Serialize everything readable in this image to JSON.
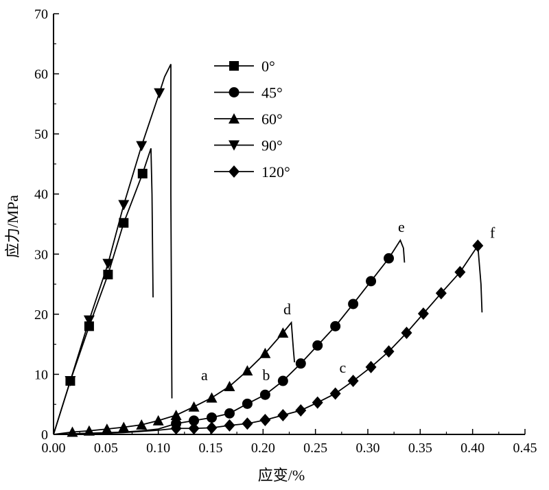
{
  "chart_data": {
    "type": "line",
    "xlabel": "应变/%",
    "ylabel": "应力/MPa",
    "xlim": [
      0,
      0.45
    ],
    "ylim": [
      0,
      70
    ],
    "xticks": [
      "0.00",
      "0.05",
      "0.10",
      "0.15",
      "0.20",
      "0.25",
      "0.30",
      "0.35",
      "0.40",
      "0.45"
    ],
    "yticks": [
      "0",
      "10",
      "20",
      "30",
      "40",
      "50",
      "60",
      "70"
    ],
    "grid": false,
    "legend_position": "top-center",
    "series": [
      {
        "name": "0°",
        "marker": "square",
        "line": [
          [
            0,
            0
          ],
          [
            0.016,
            8.9
          ],
          [
            0.034,
            18
          ],
          [
            0.052,
            26.6
          ],
          [
            0.067,
            35.2
          ],
          [
            0.085,
            43.4
          ],
          [
            0.093,
            47.6
          ],
          [
            0.094,
            40
          ],
          [
            0.095,
            22.8
          ]
        ],
        "markers": [
          [
            0.016,
            8.9
          ],
          [
            0.034,
            18
          ],
          [
            0.052,
            26.6
          ],
          [
            0.067,
            35.2
          ],
          [
            0.085,
            43.4
          ]
        ]
      },
      {
        "name": "45°",
        "marker": "circle",
        "line": [
          [
            0,
            0
          ],
          [
            0.018,
            0.1
          ],
          [
            0.034,
            0.2
          ],
          [
            0.051,
            0.3
          ],
          [
            0.067,
            0.4
          ],
          [
            0.084,
            0.6
          ],
          [
            0.1,
            0.9
          ],
          [
            0.117,
            1.8
          ],
          [
            0.134,
            2.3
          ],
          [
            0.151,
            2.8
          ],
          [
            0.168,
            3.5
          ],
          [
            0.185,
            5.1
          ],
          [
            0.202,
            6.6
          ],
          [
            0.219,
            8.9
          ],
          [
            0.236,
            11.8
          ],
          [
            0.252,
            14.8
          ],
          [
            0.269,
            18.0
          ],
          [
            0.286,
            21.7
          ],
          [
            0.303,
            25.5
          ],
          [
            0.32,
            29.3
          ],
          [
            0.331,
            32.3
          ],
          [
            0.334,
            31
          ],
          [
            0.335,
            28.6
          ]
        ],
        "markers": [
          [
            0.117,
            1.8
          ],
          [
            0.134,
            2.3
          ],
          [
            0.151,
            2.8
          ],
          [
            0.168,
            3.5
          ],
          [
            0.185,
            5.1
          ],
          [
            0.202,
            6.6
          ],
          [
            0.219,
            8.9
          ],
          [
            0.236,
            11.8
          ],
          [
            0.252,
            14.8
          ],
          [
            0.269,
            18.0
          ],
          [
            0.286,
            21.7
          ],
          [
            0.303,
            25.5
          ],
          [
            0.32,
            29.3
          ]
        ]
      },
      {
        "name": "60°",
        "marker": "triangle-up",
        "line": [
          [
            0,
            0
          ],
          [
            0.018,
            0.4
          ],
          [
            0.034,
            0.6
          ],
          [
            0.051,
            0.9
          ],
          [
            0.067,
            1.2
          ],
          [
            0.084,
            1.6
          ],
          [
            0.1,
            2.3
          ],
          [
            0.117,
            3.2
          ],
          [
            0.134,
            4.6
          ],
          [
            0.151,
            6.1
          ],
          [
            0.168,
            8.0
          ],
          [
            0.185,
            10.6
          ],
          [
            0.202,
            13.5
          ],
          [
            0.219,
            16.9
          ],
          [
            0.227,
            18.6
          ],
          [
            0.229,
            14
          ],
          [
            0.23,
            12
          ]
        ],
        "markers": [
          [
            0.018,
            0.4
          ],
          [
            0.034,
            0.6
          ],
          [
            0.051,
            0.9
          ],
          [
            0.067,
            1.2
          ],
          [
            0.084,
            1.6
          ],
          [
            0.1,
            2.3
          ],
          [
            0.117,
            3.2
          ],
          [
            0.134,
            4.6
          ],
          [
            0.151,
            6.1
          ],
          [
            0.168,
            8.0
          ],
          [
            0.185,
            10.6
          ],
          [
            0.202,
            13.5
          ],
          [
            0.219,
            16.9
          ]
        ]
      },
      {
        "name": "90°",
        "marker": "triangle-down",
        "line": [
          [
            0,
            0
          ],
          [
            0.016,
            8.9
          ],
          [
            0.034,
            19
          ],
          [
            0.052,
            28.4
          ],
          [
            0.067,
            38.2
          ],
          [
            0.084,
            48
          ],
          [
            0.101,
            56.8
          ],
          [
            0.106,
            59.5
          ],
          [
            0.112,
            61.6
          ],
          [
            0.112,
            40
          ],
          [
            0.113,
            6
          ]
        ],
        "markers": [
          [
            0.016,
            8.9
          ],
          [
            0.034,
            19
          ],
          [
            0.052,
            28.4
          ],
          [
            0.067,
            38.2
          ],
          [
            0.084,
            48
          ],
          [
            0.101,
            56.8
          ]
        ]
      },
      {
        "name": "120°",
        "marker": "diamond",
        "line": [
          [
            0,
            0
          ],
          [
            0.018,
            0.05
          ],
          [
            0.034,
            0.1
          ],
          [
            0.051,
            0.2
          ],
          [
            0.067,
            0.3
          ],
          [
            0.084,
            0.5
          ],
          [
            0.1,
            0.7
          ],
          [
            0.117,
            1.0
          ],
          [
            0.134,
            1.0
          ],
          [
            0.151,
            1.1
          ],
          [
            0.168,
            1.5
          ],
          [
            0.185,
            1.8
          ],
          [
            0.202,
            2.4
          ],
          [
            0.219,
            3.2
          ],
          [
            0.236,
            4.0
          ],
          [
            0.252,
            5.3
          ],
          [
            0.269,
            6.8
          ],
          [
            0.286,
            8.9
          ],
          [
            0.303,
            11.2
          ],
          [
            0.32,
            13.8
          ],
          [
            0.337,
            16.9
          ],
          [
            0.353,
            20.1
          ],
          [
            0.37,
            23.5
          ],
          [
            0.388,
            27.0
          ],
          [
            0.405,
            31.4
          ],
          [
            0.408,
            25
          ],
          [
            0.409,
            20.3
          ]
        ],
        "markers": [
          [
            0.117,
            1.0
          ],
          [
            0.134,
            1.0
          ],
          [
            0.151,
            1.1
          ],
          [
            0.168,
            1.5
          ],
          [
            0.185,
            1.8
          ],
          [
            0.202,
            2.4
          ],
          [
            0.219,
            3.2
          ],
          [
            0.236,
            4.0
          ],
          [
            0.252,
            5.3
          ],
          [
            0.269,
            6.8
          ],
          [
            0.286,
            8.9
          ],
          [
            0.303,
            11.2
          ],
          [
            0.32,
            13.8
          ],
          [
            0.337,
            16.9
          ],
          [
            0.353,
            20.1
          ],
          [
            0.37,
            23.5
          ],
          [
            0.388,
            27.0
          ],
          [
            0.405,
            31.4
          ]
        ]
      }
    ],
    "annotations": [
      {
        "text": "a",
        "x": 0.144,
        "y": 9.0
      },
      {
        "text": "b",
        "x": 0.203,
        "y": 9.0
      },
      {
        "text": "c",
        "x": 0.276,
        "y": 10.3
      },
      {
        "text": "d",
        "x": 0.223,
        "y": 20.0
      },
      {
        "text": "e",
        "x": 0.332,
        "y": 33.7
      },
      {
        "text": "f",
        "x": 0.419,
        "y": 32.7
      }
    ]
  }
}
